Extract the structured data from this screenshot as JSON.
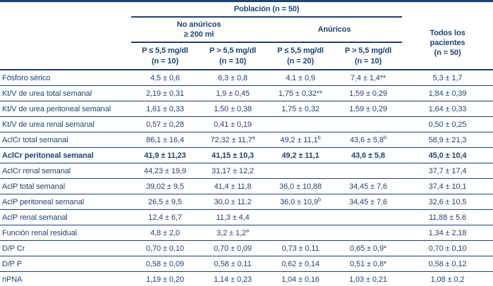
{
  "colors": {
    "ink": "#1b4379",
    "rule": "#1b4379",
    "background": "#ffffff"
  },
  "table": {
    "header": {
      "population": "Población (n = 50)",
      "no_anuric_line1": "No anúricos",
      "no_anuric_line2": "≥ 200 ml",
      "anuric": "Anúricos",
      "all_patients_line1": "Todos los",
      "all_patients_line2": "pacientes",
      "all_patients_line3": "(n = 50)",
      "columns": [
        {
          "line1": "P ≤ 5,5 mg/dl",
          "line2": "(n = 10)"
        },
        {
          "line1": "P > 5,5 mg/dl",
          "line2": "(n = 10)"
        },
        {
          "line1": "P ≤ 5,5 mg/dl",
          "line2": "(n = 20)"
        },
        {
          "line1": "P > 5,5 mg/dl",
          "line2": "(n = 10)"
        }
      ]
    },
    "rows": [
      {
        "label": "Fósforo sérico",
        "bold": false,
        "cells": [
          {
            "v": "4,5 ± 0,6"
          },
          {
            "v": "6,3 ± 0,8"
          },
          {
            "v": "4,1 ± 0,9"
          },
          {
            "v": "7,4 ± 1,4**"
          },
          {
            "v": "5,3 ± 1,7"
          }
        ]
      },
      {
        "label": "Kt/V de urea total semanal",
        "bold": false,
        "cells": [
          {
            "v": "2,19 ± 0,31"
          },
          {
            "v": "1,9 ± 0,45"
          },
          {
            "v": "1,75 ± 0,32**"
          },
          {
            "v": "1,59 ± 0,29"
          },
          {
            "v": "1,84 ± 0,39"
          }
        ]
      },
      {
        "label": "Kt/V de urea peritoneal semanal",
        "bold": false,
        "cells": [
          {
            "v": "1,61 ± 0,33"
          },
          {
            "v": "1,50 ± 0,38"
          },
          {
            "v": "1,75 ± 0,32"
          },
          {
            "v": "1,59 ± 0,29"
          },
          {
            "v": "1,64 ± 0,33"
          }
        ]
      },
      {
        "label": "Kt/V de urea renal semanal",
        "bold": false,
        "cells": [
          {
            "v": "0,57 ± 0,28"
          },
          {
            "v": "0,41 ± 0,19"
          },
          {
            "v": ""
          },
          {
            "v": ""
          },
          {
            "v": "0,50 ± 0,25"
          }
        ]
      },
      {
        "label": "AclCr total semanal",
        "bold": false,
        "cells": [
          {
            "v": "86,1 ± 16,4"
          },
          {
            "v": "72,32 ± 11,7",
            "sup": "a"
          },
          {
            "v": "49,2 ± 11,1",
            "sup": "b"
          },
          {
            "v": "43,6 ± 5,8",
            "sup": "b"
          },
          {
            "v": "58,9 ± 21,3"
          }
        ]
      },
      {
        "label": "AclCr peritoneal semanal",
        "bold": true,
        "cells": [
          {
            "v": "41,9 ± 11,23"
          },
          {
            "v": "41,15 ± 10,3"
          },
          {
            "v": "49,2 ± 11,1"
          },
          {
            "v": "43,6 ± 5,8"
          },
          {
            "v": "45,0 ± 10,4"
          }
        ]
      },
      {
        "label": "AclCr renal semanal",
        "bold": false,
        "cells": [
          {
            "v": "44,23 ± 19,9"
          },
          {
            "v": "31,17 ± 12,2"
          },
          {
            "v": ""
          },
          {
            "v": ""
          },
          {
            "v": "37,7 ± 17,4"
          }
        ]
      },
      {
        "label": "AclP total semanal",
        "bold": false,
        "cells": [
          {
            "v": "39,02 ± 9,5"
          },
          {
            "v": "41,4 ± 11,8"
          },
          {
            "v": "36,0 ± 10,88"
          },
          {
            "v": "34,45 ± 7,6"
          },
          {
            "v": "37,4 ± 10,1"
          }
        ]
      },
      {
        "label": "AclP peritoneal semanal",
        "bold": false,
        "cells": [
          {
            "v": "26,5 ± 9,5"
          },
          {
            "v": "30,0 ± 11,2"
          },
          {
            "v": "36,0 ± 10,9",
            "sup": "b"
          },
          {
            "v": "34,45 ± 7,6"
          },
          {
            "v": "32,6 ± 10,5"
          }
        ]
      },
      {
        "label": "AclP renal semanal",
        "bold": false,
        "cells": [
          {
            "v": "12,4 ± 6,7"
          },
          {
            "v": "11,3 ± 4,4"
          },
          {
            "v": ""
          },
          {
            "v": ""
          },
          {
            "v": "11,88 ± 5,6"
          }
        ]
      },
      {
        "label": "Función renal residual",
        "bold": false,
        "cells": [
          {
            "v": "4,8 ± 2,0"
          },
          {
            "v": "3,2 ± 1,2",
            "sup": "a"
          },
          {
            "v": ""
          },
          {
            "v": ""
          },
          {
            "v": "1,34 ± 2,18"
          }
        ]
      },
      {
        "label": "D/P Cr",
        "bold": false,
        "cells": [
          {
            "v": "0,70 ± 0,10"
          },
          {
            "v": "0,70 ± 0,09"
          },
          {
            "v": "0,73 ± 0,11"
          },
          {
            "v": "0,65 ± 0,9*"
          },
          {
            "v": "0,70 ± 0,10"
          }
        ]
      },
      {
        "label": "D/P P",
        "bold": false,
        "cells": [
          {
            "v": "0,58 ± 0,09"
          },
          {
            "v": "0,58 ± 0,11"
          },
          {
            "v": "0,62 ± 0,14"
          },
          {
            "v": "0,51 ± 0,8*"
          },
          {
            "v": "0,58 ± 0,12"
          }
        ]
      },
      {
        "label": "nPNA",
        "bold": false,
        "cells": [
          {
            "v": "1,19 ± 0,20"
          },
          {
            "v": "1,14 ± 0,23"
          },
          {
            "v": "1,04 ± 0,16"
          },
          {
            "v": "1,03 ± 0,21"
          },
          {
            "v": "1,08 ± 0,2"
          }
        ]
      }
    ]
  }
}
